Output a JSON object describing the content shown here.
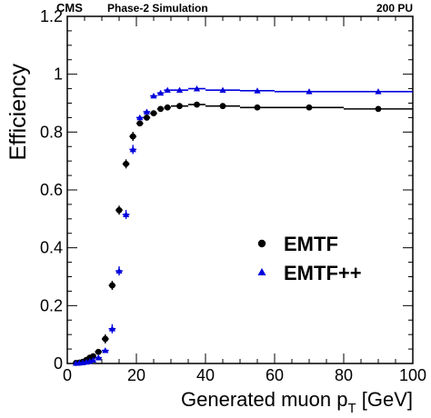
{
  "header": {
    "experiment": "CMS",
    "subtitle": "Phase-2 Simulation",
    "pileup": "200 PU"
  },
  "chart_data": {
    "type": "scatter",
    "xlabel": "Generated muon p",
    "xlabel_sub": "T",
    "xlabel_unit": " [GeV]",
    "ylabel": "Efficiency",
    "xlim": [
      0,
      100
    ],
    "ylim": [
      0,
      1.2
    ],
    "x_ticks": [
      "0",
      "20",
      "40",
      "60",
      "80",
      "100"
    ],
    "y_ticks": [
      "0",
      "0.2",
      "0.4",
      "0.6",
      "0.8",
      "1",
      "1.2"
    ],
    "legend_position": "right-middle",
    "series": [
      {
        "name": "EMTF",
        "marker": "circle",
        "color": "#000000",
        "points": [
          {
            "x": 2.5,
            "y": 0.002,
            "xerr": 0.5
          },
          {
            "x": 3.5,
            "y": 0.003,
            "xerr": 0.5
          },
          {
            "x": 4.5,
            "y": 0.006,
            "xerr": 0.5
          },
          {
            "x": 5.5,
            "y": 0.012,
            "xerr": 0.5
          },
          {
            "x": 6.5,
            "y": 0.02,
            "xerr": 0.5
          },
          {
            "x": 7.5,
            "y": 0.025,
            "xerr": 0.5
          },
          {
            "x": 9,
            "y": 0.04,
            "xerr": 1
          },
          {
            "x": 11,
            "y": 0.085,
            "xerr": 1
          },
          {
            "x": 13,
            "y": 0.27,
            "xerr": 1
          },
          {
            "x": 15,
            "y": 0.53,
            "xerr": 1
          },
          {
            "x": 17,
            "y": 0.69,
            "xerr": 1
          },
          {
            "x": 19,
            "y": 0.785,
            "xerr": 1
          },
          {
            "x": 21,
            "y": 0.83,
            "xerr": 1
          },
          {
            "x": 23,
            "y": 0.85,
            "xerr": 1
          },
          {
            "x": 25,
            "y": 0.865,
            "xerr": 1
          },
          {
            "x": 27,
            "y": 0.88,
            "xerr": 1
          },
          {
            "x": 29,
            "y": 0.885,
            "xerr": 1
          },
          {
            "x": 32.5,
            "y": 0.89,
            "xerr": 2.5
          },
          {
            "x": 37.5,
            "y": 0.895,
            "xerr": 2.5
          },
          {
            "x": 45,
            "y": 0.89,
            "xerr": 5
          },
          {
            "x": 55,
            "y": 0.885,
            "xerr": 5
          },
          {
            "x": 70,
            "y": 0.885,
            "xerr": 10
          },
          {
            "x": 90,
            "y": 0.88,
            "xerr": 10
          }
        ]
      },
      {
        "name": "EMTF++",
        "marker": "triangle",
        "color": "#0000dd",
        "points": [
          {
            "x": 2.5,
            "y": 0.001,
            "xerr": 0.5
          },
          {
            "x": 3.5,
            "y": 0.002,
            "xerr": 0.5
          },
          {
            "x": 4.5,
            "y": 0.003,
            "xerr": 0.5
          },
          {
            "x": 5.5,
            "y": 0.005,
            "xerr": 0.5
          },
          {
            "x": 6.5,
            "y": 0.008,
            "xerr": 0.5
          },
          {
            "x": 7.5,
            "y": 0.012,
            "xerr": 0.5
          },
          {
            "x": 9,
            "y": 0.02,
            "xerr": 1
          },
          {
            "x": 11,
            "y": 0.045,
            "xerr": 1
          },
          {
            "x": 13,
            "y": 0.12,
            "xerr": 1
          },
          {
            "x": 15,
            "y": 0.32,
            "xerr": 1
          },
          {
            "x": 17,
            "y": 0.515,
            "xerr": 1
          },
          {
            "x": 19,
            "y": 0.74,
            "xerr": 1
          },
          {
            "x": 21,
            "y": 0.85,
            "xerr": 1
          },
          {
            "x": 23,
            "y": 0.87,
            "xerr": 1
          },
          {
            "x": 25,
            "y": 0.925,
            "xerr": 1
          },
          {
            "x": 27,
            "y": 0.935,
            "xerr": 1
          },
          {
            "x": 29,
            "y": 0.945,
            "xerr": 1
          },
          {
            "x": 32.5,
            "y": 0.945,
            "xerr": 2.5
          },
          {
            "x": 37.5,
            "y": 0.95,
            "xerr": 2.5
          },
          {
            "x": 45,
            "y": 0.945,
            "xerr": 5
          },
          {
            "x": 55,
            "y": 0.943,
            "xerr": 5
          },
          {
            "x": 70,
            "y": 0.94,
            "xerr": 10
          },
          {
            "x": 90,
            "y": 0.94,
            "xerr": 10
          }
        ]
      }
    ]
  }
}
